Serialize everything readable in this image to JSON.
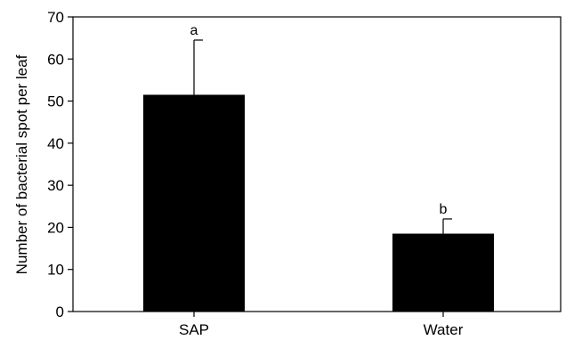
{
  "chart_data": {
    "type": "bar",
    "categories": [
      "SAP",
      "Water"
    ],
    "values": [
      51.5,
      18.5
    ],
    "error_upper": [
      64.5,
      22.0
    ],
    "significance_letters": [
      "a",
      "b"
    ],
    "title": "",
    "xlabel": "",
    "ylabel": "Number of bacterial spot per leaf",
    "ylim": [
      0,
      70
    ],
    "yticks": [
      0,
      10,
      20,
      30,
      40,
      50,
      60,
      70
    ],
    "grid": false,
    "bar_color": "#000000"
  }
}
